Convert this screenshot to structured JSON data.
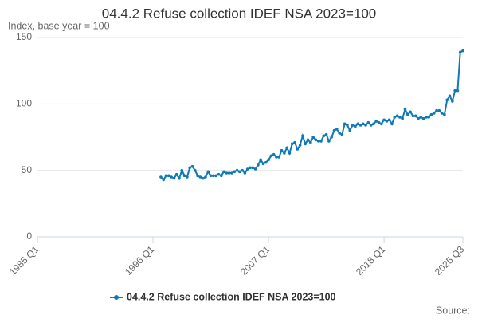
{
  "chart_data": {
    "type": "line",
    "title": "04.4.2 Refuse collection IDEF NSA 2023=100",
    "subtitle": "Index, base year = 100",
    "source": "Source:",
    "xlim": [
      "1985 Q1",
      "2025 Q3"
    ],
    "xticks": [
      "1985 Q1",
      "1996 Q1",
      "2007 Q1",
      "2018 Q1",
      "2025 Q3"
    ],
    "ylim": [
      0,
      150
    ],
    "yticks": [
      0,
      50,
      100,
      150
    ],
    "grid": true,
    "x": [
      "1996 Q4",
      "1997 Q1",
      "1997 Q2",
      "1997 Q3",
      "1997 Q4",
      "1998 Q1",
      "1998 Q2",
      "1998 Q3",
      "1998 Q4",
      "1999 Q1",
      "1999 Q2",
      "1999 Q3",
      "1999 Q4",
      "2000 Q1",
      "2000 Q2",
      "2000 Q3",
      "2000 Q4",
      "2001 Q1",
      "2001 Q2",
      "2001 Q3",
      "2001 Q4",
      "2002 Q1",
      "2002 Q2",
      "2002 Q3",
      "2002 Q4",
      "2003 Q1",
      "2003 Q2",
      "2003 Q3",
      "2003 Q4",
      "2004 Q1",
      "2004 Q2",
      "2004 Q3",
      "2004 Q4",
      "2005 Q1",
      "2005 Q2",
      "2005 Q3",
      "2005 Q4",
      "2006 Q1",
      "2006 Q2",
      "2006 Q3",
      "2006 Q4",
      "2007 Q1",
      "2007 Q2",
      "2007 Q3",
      "2007 Q4",
      "2008 Q1",
      "2008 Q2",
      "2008 Q3",
      "2008 Q4",
      "2009 Q1",
      "2009 Q2",
      "2009 Q3",
      "2009 Q4",
      "2010 Q1",
      "2010 Q2",
      "2010 Q3",
      "2010 Q4",
      "2011 Q1",
      "2011 Q2",
      "2011 Q3",
      "2011 Q4",
      "2012 Q1",
      "2012 Q2",
      "2012 Q3",
      "2012 Q4",
      "2013 Q1",
      "2013 Q2",
      "2013 Q3",
      "2013 Q4",
      "2014 Q1",
      "2014 Q2",
      "2014 Q3",
      "2014 Q4",
      "2015 Q1",
      "2015 Q2",
      "2015 Q3",
      "2015 Q4",
      "2016 Q1",
      "2016 Q2",
      "2016 Q3",
      "2016 Q4",
      "2017 Q1",
      "2017 Q2",
      "2017 Q3",
      "2017 Q4",
      "2018 Q1",
      "2018 Q2",
      "2018 Q3",
      "2018 Q4",
      "2019 Q1",
      "2019 Q2",
      "2019 Q3",
      "2019 Q4",
      "2020 Q1",
      "2020 Q2",
      "2020 Q3",
      "2020 Q4",
      "2021 Q1",
      "2021 Q2",
      "2021 Q3",
      "2021 Q4",
      "2022 Q1",
      "2022 Q2",
      "2022 Q3",
      "2022 Q4",
      "2023 Q1",
      "2023 Q2",
      "2023 Q3",
      "2023 Q4",
      "2024 Q1",
      "2024 Q2",
      "2024 Q3",
      "2024 Q4",
      "2025 Q1",
      "2025 Q2",
      "2025 Q3"
    ],
    "series": [
      {
        "name": "04.4.2 Refuse collection IDEF NSA 2023=100",
        "color": "#0f7ab8",
        "values": [
          45,
          43,
          46,
          46,
          45,
          44,
          47,
          44,
          50,
          46,
          45,
          52,
          53,
          50,
          46,
          45,
          44,
          45,
          49,
          46,
          46,
          46,
          47,
          46,
          49,
          48,
          48,
          48,
          49,
          50,
          49,
          50,
          48,
          51,
          52,
          52,
          51,
          54,
          58,
          55,
          56,
          58,
          61,
          62,
          60,
          60,
          65,
          63,
          67,
          63,
          70,
          71,
          66,
          69,
          76,
          70,
          73,
          71,
          75,
          73,
          72,
          72,
          76,
          77,
          72,
          75,
          80,
          81,
          78,
          77,
          85,
          84,
          80,
          84,
          83,
          85,
          84,
          85,
          84,
          86,
          84,
          85,
          87,
          86,
          85,
          88,
          87,
          88,
          85,
          90,
          91,
          90,
          89,
          96,
          92,
          94,
          91,
          91,
          89,
          90,
          89,
          90,
          90,
          92,
          93,
          95,
          95,
          93,
          92,
          103,
          106,
          102,
          110,
          110,
          139,
          140
        ]
      }
    ]
  }
}
